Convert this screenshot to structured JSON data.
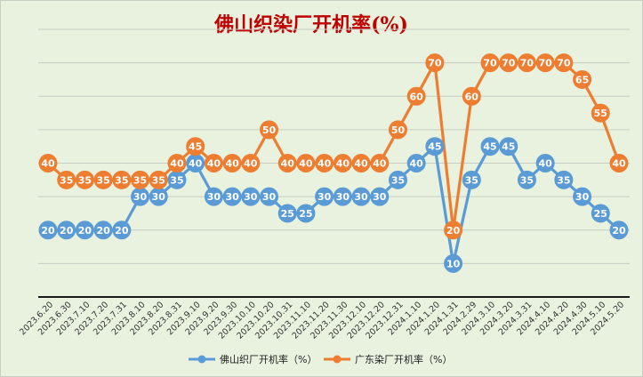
{
  "chart_data": {
    "type": "line",
    "title": "佛山织染厂开机率(%)",
    "x": [
      "2023.6.20",
      "2023.6.30",
      "2023.7.10",
      "2023.7.20",
      "2023.7.31",
      "2023.8.10",
      "2023.8.20",
      "2023.8.31",
      "2023.9.10",
      "2023.9.20",
      "2023.9.30",
      "2023.10.10",
      "2023.10.20",
      "2023.10.31",
      "2023.11.10",
      "2023.11.20",
      "2023.11.30",
      "2023.12.10",
      "2023.12.20",
      "2023.12.31",
      "2024.1.10",
      "2024.1.20",
      "2024.1.31",
      "2024.2.29",
      "2024.3.10",
      "2024.3.20",
      "2024.3.31",
      "2024.4.10",
      "2024.4.20",
      "2024.4.30",
      "2024.5.10",
      "2024.5.20"
    ],
    "series": [
      {
        "name": "佛山织厂开机率（%）",
        "color": "#5b9bd5",
        "values": [
          20,
          20,
          20,
          20,
          20,
          30,
          30,
          35,
          40,
          30,
          30,
          30,
          30,
          25,
          25,
          30,
          30,
          30,
          30,
          35,
          40,
          45,
          10,
          35,
          45,
          45,
          35,
          40,
          35,
          30,
          25,
          20
        ]
      },
      {
        "name": "广东染厂开机率（%）",
        "color": "#ed7d31",
        "values": [
          40,
          35,
          35,
          35,
          35,
          35,
          35,
          40,
          45,
          40,
          40,
          40,
          50,
          40,
          40,
          40,
          40,
          40,
          40,
          50,
          60,
          70,
          20,
          60,
          70,
          70,
          70,
          70,
          70,
          65,
          55,
          40
        ]
      }
    ],
    "ylim": [
      0,
      80
    ],
    "grid": true,
    "legend": "bottom"
  }
}
